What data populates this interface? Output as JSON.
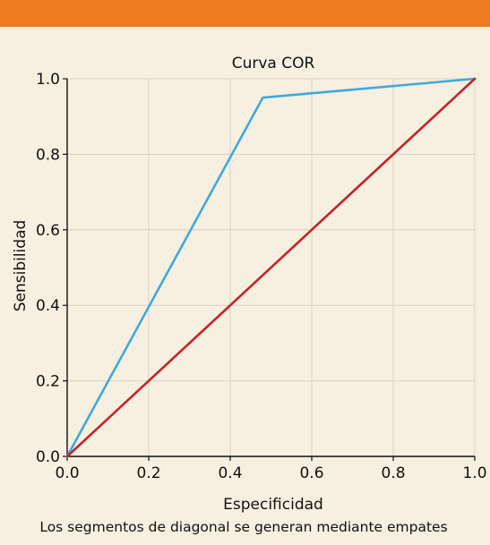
{
  "chart_data": {
    "type": "line",
    "title": "Curva COR",
    "xlabel": "Especificidad",
    "ylabel": "Sensibilidad",
    "caption": "Los segmentos de diagonal se generan mediante empates",
    "xlim": [
      0,
      1
    ],
    "ylim": [
      0,
      1
    ],
    "grid": true,
    "x_ticks": [
      "0.0",
      "0.2",
      "0.4",
      "0.6",
      "0.8",
      "1.0"
    ],
    "y_ticks": [
      "0.0",
      "0.2",
      "0.4",
      "0.6",
      "0.8",
      "1.0"
    ],
    "series": [
      {
        "color": "#3fa9dd",
        "points": [
          [
            0.0,
            0.0
          ],
          [
            0.48,
            0.95
          ],
          [
            1.0,
            1.0
          ]
        ]
      },
      {
        "color": "#c5222b",
        "points": [
          [
            0.0,
            0.0
          ],
          [
            1.0,
            1.0
          ]
        ]
      }
    ],
    "colors": {
      "header_bar": "#ee7b1f",
      "background": "#f7efdf",
      "grid": "#d8d2c4"
    }
  }
}
